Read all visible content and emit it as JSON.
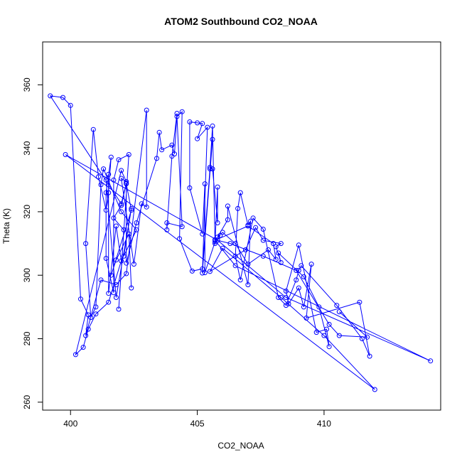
{
  "chart_data": {
    "type": "line",
    "title": "ATOM2 Southbound CO2_NOAA",
    "xlabel": "CO2_NOAA",
    "ylabel": "Theta (K)",
    "xlim": [
      398.9,
      414.6
    ],
    "ylim": [
      257.5,
      373.5
    ],
    "x_ticks": [
      400,
      405,
      410
    ],
    "y_ticks": [
      260,
      280,
      300,
      320,
      340,
      360
    ],
    "series": [
      {
        "color": "#0000ff",
        "marker": "open-circle",
        "points": [
          [
            402.4,
            296.0
          ],
          [
            402.3,
            313.0
          ],
          [
            401.8,
            304.8
          ],
          [
            401.6,
            300.0
          ],
          [
            402.4,
            320.5
          ],
          [
            402.2,
            328.8
          ],
          [
            402.0,
            322.0
          ],
          [
            401.7,
            318.0
          ],
          [
            402.1,
            314.3
          ],
          [
            401.9,
            289.3
          ],
          [
            402.3,
            338.0
          ],
          [
            401.9,
            336.4
          ],
          [
            401.7,
            330.0
          ],
          [
            401.7,
            294.5
          ],
          [
            401.4,
            305.3
          ],
          [
            401.4,
            326.0
          ],
          [
            401.6,
            337.2
          ],
          [
            401.5,
            326.0
          ],
          [
            401.4,
            320.5
          ],
          [
            401.1,
            331.0
          ],
          [
            400.9,
            345.9
          ],
          [
            400.6,
            310.0
          ],
          [
            400.8,
            286.7
          ],
          [
            401.0,
            290.0
          ],
          [
            401.2,
            328.5
          ],
          [
            401.3,
            333.5
          ],
          [
            402.0,
            320.0
          ],
          [
            402.6,
            314.3
          ],
          [
            402.1,
            306.0
          ],
          [
            402.4,
            321.0
          ],
          [
            401.8,
            293.0
          ],
          [
            401.4,
            330.0
          ],
          [
            401.5,
            331.8
          ],
          [
            401.5,
            294.3
          ],
          [
            401.8,
            315.5
          ],
          [
            402.0,
            304.5
          ],
          [
            401.5,
            291.5
          ],
          [
            401.0,
            287.8
          ],
          [
            400.7,
            283.0
          ],
          [
            400.5,
            277.3
          ],
          [
            400.2,
            275.0
          ],
          [
            402.0,
            333.0
          ],
          [
            402.2,
            329.5
          ],
          [
            402.0,
            330.5
          ],
          [
            402.5,
            303.5
          ],
          [
            402.8,
            322.5
          ],
          [
            403.0,
            321.5
          ],
          [
            403.0,
            352.0
          ],
          [
            402.2,
            300.5
          ],
          [
            401.8,
            297.0
          ],
          [
            401.2,
            298.5
          ],
          [
            400.6,
            281.0
          ],
          [
            400.7,
            287.5
          ],
          [
            400.4,
            292.5
          ],
          [
            400.0,
            353.5
          ],
          [
            399.7,
            356.0
          ],
          [
            399.2,
            356.5
          ],
          [
            402.0,
            322.5
          ],
          [
            402.2,
            329.0
          ],
          [
            402.2,
            303.8
          ],
          [
            402.6,
            316.5
          ],
          [
            403.4,
            336.8
          ],
          [
            403.5,
            345.0
          ],
          [
            403.6,
            339.5
          ],
          [
            404.0,
            341.0
          ],
          [
            404.1,
            338.2
          ],
          [
            404.2,
            351.0
          ],
          [
            404.0,
            337.5
          ],
          [
            403.8,
            314.3
          ],
          [
            403.8,
            316.5
          ],
          [
            404.4,
            315.3
          ],
          [
            404.2,
            350.0
          ],
          [
            404.4,
            351.5
          ],
          [
            404.3,
            311.5
          ],
          [
            404.8,
            301.3
          ],
          [
            405.2,
            302.0
          ],
          [
            405.5,
            333.5
          ],
          [
            405.6,
            342.8
          ],
          [
            405.2,
            300.7
          ],
          [
            405.4,
            346.6
          ],
          [
            405.0,
            343.0
          ],
          [
            405.2,
            347.8
          ],
          [
            405.0,
            348.0
          ],
          [
            404.7,
            348.3
          ],
          [
            404.7,
            327.5
          ],
          [
            405.2,
            313.0
          ],
          [
            405.3,
            328.8
          ],
          [
            405.3,
            300.8
          ],
          [
            405.7,
            310.5
          ],
          [
            405.6,
            347.0
          ],
          [
            405.5,
            334.0
          ],
          [
            405.6,
            333.5
          ],
          [
            405.8,
            316.5
          ],
          [
            405.8,
            327.8
          ],
          [
            405.7,
            310.0
          ],
          [
            405.9,
            312.5
          ],
          [
            405.8,
            312.0
          ],
          [
            406.2,
            317.5
          ],
          [
            406.2,
            321.8
          ],
          [
            407.0,
            297.0
          ],
          [
            407.1,
            317.0
          ],
          [
            407.0,
            315.8
          ],
          [
            406.7,
            326.0
          ],
          [
            406.6,
            321.0
          ],
          [
            406.5,
            306.0
          ],
          [
            406.7,
            298.5
          ],
          [
            407.2,
            318.0
          ],
          [
            407.6,
            314.5
          ],
          [
            408.2,
            293.0
          ],
          [
            408.5,
            290.5
          ],
          [
            408.9,
            298.5
          ],
          [
            409.0,
            301.5
          ],
          [
            409.1,
            303.0
          ],
          [
            410.5,
            290.5
          ],
          [
            411.5,
            280.0
          ],
          [
            411.8,
            274.5
          ],
          [
            411.4,
            291.5
          ],
          [
            409.3,
            286.5
          ],
          [
            409.5,
            303.5
          ],
          [
            409.2,
            290.0
          ],
          [
            409.0,
            296.0
          ],
          [
            408.6,
            291.0
          ],
          [
            408.5,
            295.0
          ],
          [
            409.0,
            309.5
          ],
          [
            409.7,
            282.0
          ],
          [
            410.1,
            283.0
          ],
          [
            410.2,
            277.5
          ],
          [
            409.8,
            290.0
          ],
          [
            409.2,
            299.5
          ],
          [
            408.2,
            307.0
          ],
          [
            408.3,
            304.0
          ],
          [
            408.1,
            309.0
          ],
          [
            408.3,
            310.0
          ],
          [
            407.6,
            311.0
          ],
          [
            407.3,
            315.0
          ],
          [
            406.9,
            308.0
          ],
          [
            405.5,
            301.2
          ],
          [
            406.0,
            308.5
          ],
          [
            408.3,
            293.0
          ],
          [
            410.0,
            281.0
          ],
          [
            412.0,
            264.0
          ],
          [
            399.8,
            338.0
          ],
          [
            405.8,
            311.0
          ],
          [
            408.5,
            293.0
          ],
          [
            414.2,
            273.0
          ],
          [
            406.5,
            303.0
          ],
          [
            405.7,
            311.0
          ],
          [
            407.0,
            315.5
          ],
          [
            408.0,
            310.0
          ],
          [
            408.1,
            305.0
          ],
          [
            407.8,
            308.0
          ],
          [
            407.0,
            303.5
          ],
          [
            406.5,
            310.0
          ],
          [
            406.0,
            313.5
          ],
          [
            405.7,
            311.2
          ],
          [
            406.3,
            310.0
          ],
          [
            407.6,
            306.0
          ],
          [
            408.9,
            301.5
          ],
          [
            410.2,
            284.5
          ],
          [
            410.6,
            281.0
          ],
          [
            411.7,
            280.5
          ],
          [
            410.6,
            288.5
          ]
        ]
      }
    ]
  }
}
